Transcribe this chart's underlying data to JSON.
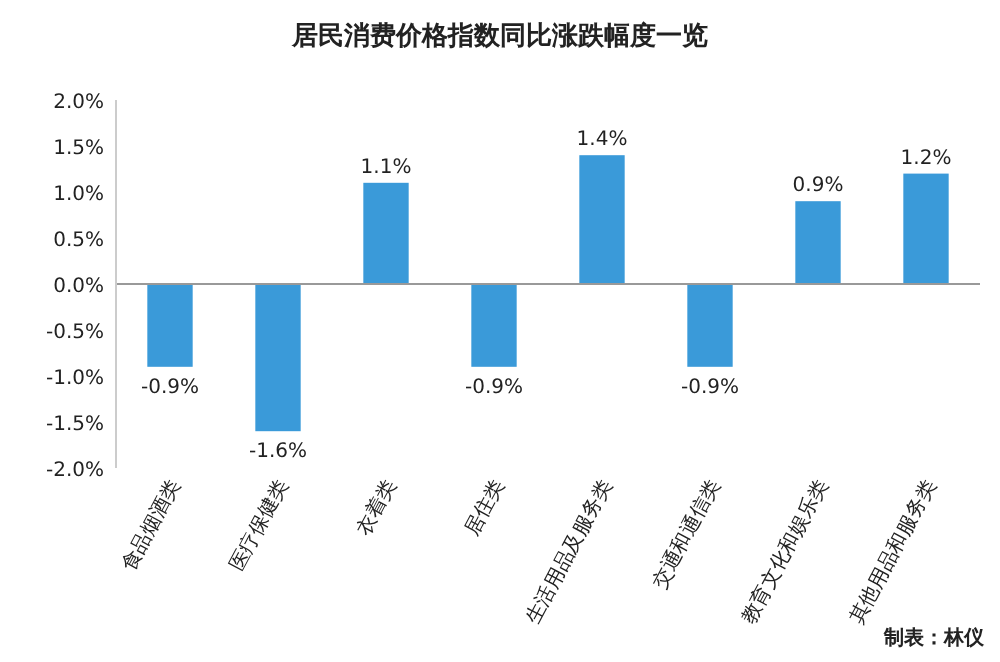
{
  "chart_data": {
    "type": "bar",
    "title": "居民消费价格指数同比涨跌幅度一览",
    "categories": [
      "食品烟酒类",
      "医疗保健类",
      "衣着类",
      "居住类",
      "生活用品及服务类",
      "交通和通信类",
      "教育文化和娱乐类",
      "其他用品和服务类"
    ],
    "values": [
      -0.9,
      -1.6,
      1.1,
      -0.9,
      1.4,
      -0.9,
      0.9,
      1.2
    ],
    "value_labels": [
      "-0.9%",
      "-1.6%",
      "1.1%",
      "-0.9%",
      "1.4%",
      "-0.9%",
      "0.9%",
      "1.2%"
    ],
    "color": "#3a9ad9",
    "ylim": [
      -2,
      2
    ],
    "yticks": [
      {
        "value": 2,
        "label": "2.0%"
      },
      {
        "value": 1.5,
        "label": "1.5%"
      },
      {
        "value": 1,
        "label": "1.0%"
      },
      {
        "value": 0.5,
        "label": "0.5%"
      },
      {
        "value": 0,
        "label": "0.0%"
      },
      {
        "value": -0.5,
        "label": "-0.5%"
      },
      {
        "value": -1,
        "label": "-1.0%"
      },
      {
        "value": -1.5,
        "label": "-1.5%"
      },
      {
        "value": -2,
        "label": "-2.0%"
      }
    ],
    "annotations": [
      "制表：林仪"
    ]
  }
}
